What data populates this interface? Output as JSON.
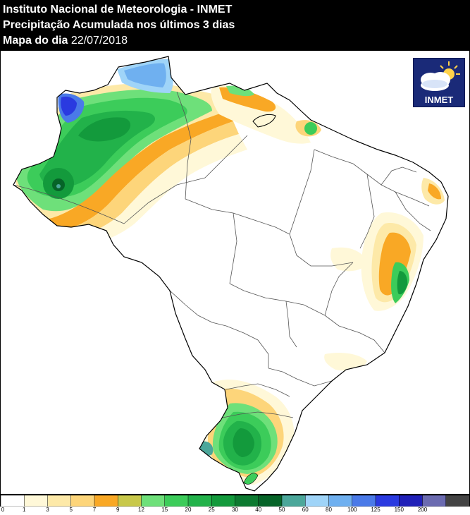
{
  "header": {
    "line1": "Instituto Nacional de Meteorologia - INMET",
    "line2": "Precipitação Acumulada nos últimos 3 dias",
    "line3_prefix": "Mapa do dia",
    "line3_date": "22/07/2018"
  },
  "logo": {
    "text": "INMET",
    "icon": "sun-cloud-icon"
  },
  "legend": {
    "ticks": [
      "0",
      "1",
      "3",
      "5",
      "7",
      "9",
      "12",
      "15",
      "20",
      "25",
      "30",
      "40",
      "50",
      "60",
      "80",
      "100",
      "125",
      "150",
      "200"
    ],
    "colors": [
      "#ffffff",
      "#fff8d8",
      "#fde9a8",
      "#fdd57a",
      "#f9a825",
      "#c8c84a",
      "#6ee07a",
      "#3ccc5a",
      "#22b24a",
      "#139a3c",
      "#0c7a30",
      "#066428",
      "#4ba79a",
      "#9fd4f8",
      "#6fb0f0",
      "#4a7ae8",
      "#2a3ae0",
      "#2020b8",
      "#6b6bb0",
      "#444444"
    ]
  },
  "map_colors": {
    "brazil_outline": "#000000",
    "state_lines": "#555555"
  }
}
